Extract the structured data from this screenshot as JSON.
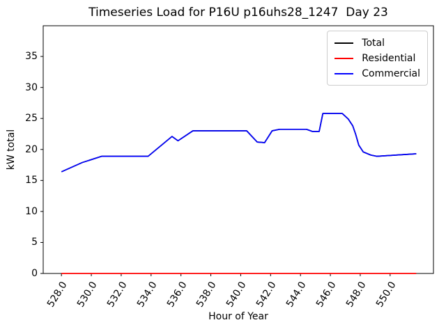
{
  "chart": {
    "title": "Timeseries Load for P16U p16uhs28_1247  Day 23",
    "xlabel": "Hour of Year",
    "ylabel": "kW total"
  },
  "legend": {
    "items": [
      {
        "label": "Total",
        "color": "#000000"
      },
      {
        "label": "Residential",
        "color": "#ff0000"
      },
      {
        "label": "Commercial",
        "color": "#0000ff"
      }
    ]
  },
  "chart_data": {
    "type": "line",
    "title": "Timeseries Load for P16U p16uhs28_1247  Day 23",
    "xlabel": "Hour of Year",
    "ylabel": "kW total",
    "xlim": [
      526.78,
      552.9
    ],
    "ylim": [
      0,
      39.95
    ],
    "xticks": [
      528,
      530,
      532,
      534,
      536,
      538,
      540,
      542,
      544,
      546,
      548,
      550
    ],
    "xtick_labels": [
      "528.0",
      "530.0",
      "532.0",
      "534.0",
      "536.0",
      "538.0",
      "540.0",
      "542.0",
      "544.0",
      "546.0",
      "548.0",
      "550.0"
    ],
    "yticks": [
      0,
      5,
      10,
      15,
      20,
      25,
      30,
      35
    ],
    "ytick_labels": [
      "0",
      "5",
      "10",
      "15",
      "20",
      "25",
      "30",
      "35"
    ],
    "grid": false,
    "legend_position": "upper right",
    "notes": "Total coincides with Commercial (Residential is 0 everywhere), so the black Total line is hidden beneath the blue Commercial line.",
    "series": [
      {
        "name": "Total",
        "color": "#000000",
        "points": [
          [
            528.0,
            16.4
          ],
          [
            529.4,
            17.9
          ],
          [
            530.7,
            18.9
          ],
          [
            533.8,
            18.9
          ],
          [
            535.4,
            22.1
          ],
          [
            535.8,
            21.4
          ],
          [
            536.8,
            23.0
          ],
          [
            540.4,
            23.0
          ],
          [
            541.1,
            21.2
          ],
          [
            541.6,
            21.1
          ],
          [
            542.1,
            23.0
          ],
          [
            542.6,
            23.25
          ],
          [
            544.4,
            23.25
          ],
          [
            544.8,
            22.9
          ],
          [
            545.25,
            22.9
          ],
          [
            545.5,
            25.8
          ],
          [
            546.8,
            25.8
          ],
          [
            547.2,
            24.9
          ],
          [
            547.5,
            23.8
          ],
          [
            547.7,
            22.4
          ],
          [
            547.9,
            20.7
          ],
          [
            548.2,
            19.6
          ],
          [
            548.7,
            19.1
          ],
          [
            549.1,
            18.9
          ],
          [
            551.75,
            19.3
          ]
        ]
      },
      {
        "name": "Residential",
        "color": "#ff0000",
        "points": [
          [
            528.0,
            0
          ],
          [
            551.75,
            0
          ]
        ]
      },
      {
        "name": "Commercial",
        "color": "#0000ff",
        "points": [
          [
            528.0,
            16.4
          ],
          [
            529.4,
            17.9
          ],
          [
            530.7,
            18.9
          ],
          [
            533.8,
            18.9
          ],
          [
            535.4,
            22.1
          ],
          [
            535.8,
            21.4
          ],
          [
            536.8,
            23.0
          ],
          [
            540.4,
            23.0
          ],
          [
            541.1,
            21.2
          ],
          [
            541.6,
            21.1
          ],
          [
            542.1,
            23.0
          ],
          [
            542.6,
            23.25
          ],
          [
            544.4,
            23.25
          ],
          [
            544.8,
            22.9
          ],
          [
            545.25,
            22.9
          ],
          [
            545.5,
            25.8
          ],
          [
            546.8,
            25.8
          ],
          [
            547.2,
            24.9
          ],
          [
            547.5,
            23.8
          ],
          [
            547.7,
            22.4
          ],
          [
            547.9,
            20.7
          ],
          [
            548.2,
            19.6
          ],
          [
            548.7,
            19.1
          ],
          [
            549.1,
            18.9
          ],
          [
            551.75,
            19.3
          ]
        ]
      }
    ]
  }
}
